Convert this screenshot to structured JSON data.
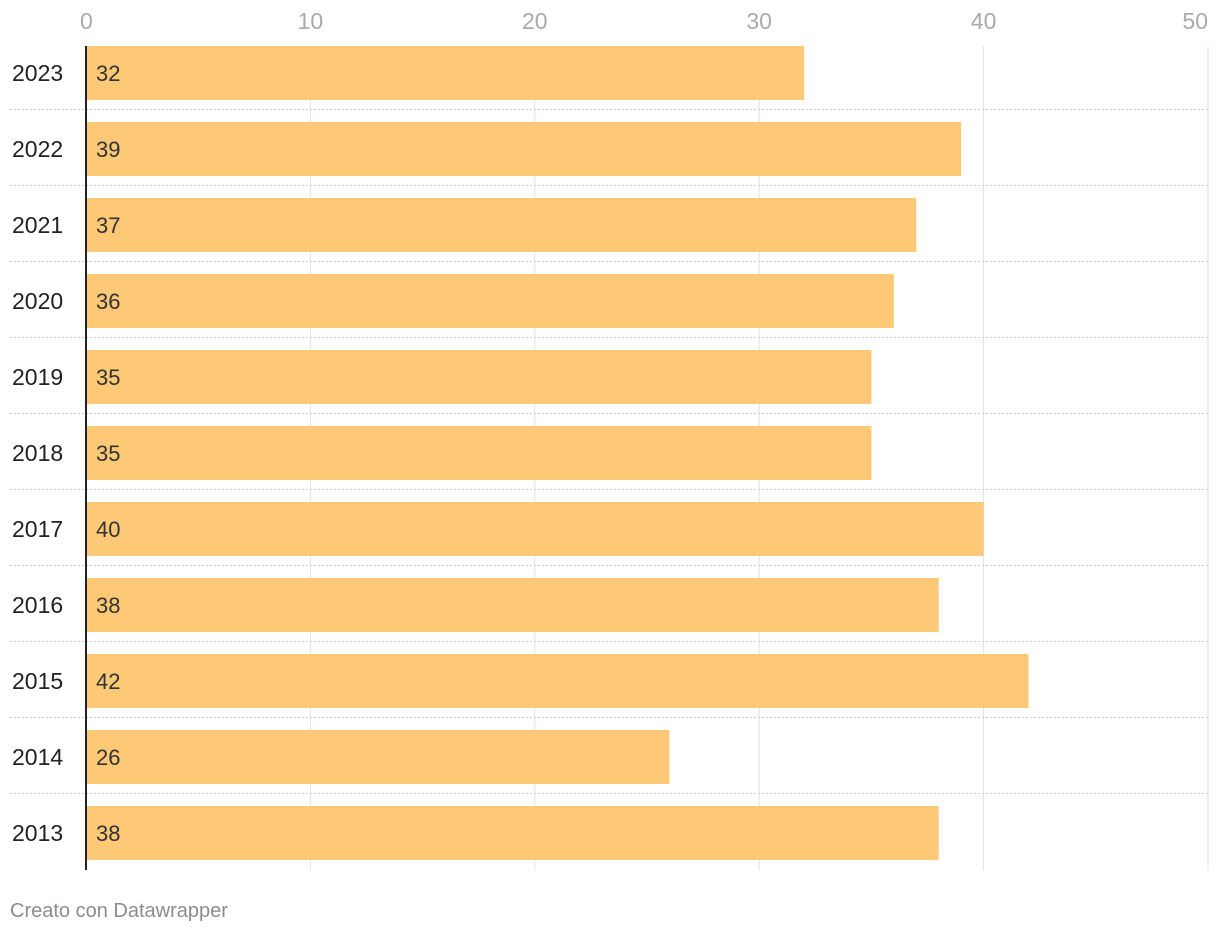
{
  "chart_data": {
    "type": "bar",
    "orientation": "horizontal",
    "categories": [
      "2023",
      "2022",
      "2021",
      "2020",
      "2019",
      "2018",
      "2017",
      "2016",
      "2015",
      "2014",
      "2013"
    ],
    "values": [
      32,
      39,
      37,
      36,
      35,
      35,
      40,
      38,
      42,
      26,
      38
    ],
    "xlim": [
      0,
      50
    ],
    "x_ticks": [
      "0",
      "10",
      "20",
      "30",
      "40",
      "50"
    ],
    "x_axis_position": "top",
    "grid": true,
    "bar_color": "#fdc976",
    "value_labels": true
  },
  "footer": {
    "credit": "Creato con Datawrapper"
  }
}
